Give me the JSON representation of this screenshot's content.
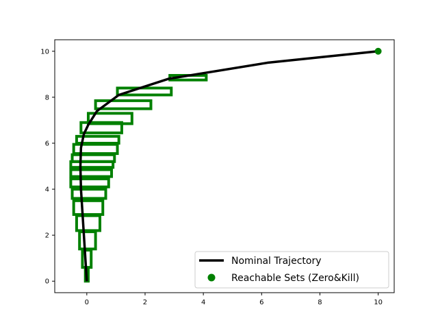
{
  "chart_data": {
    "type": "line",
    "title": "",
    "xlabel": "",
    "ylabel": "",
    "xlim": [
      -1.1,
      10.55
    ],
    "ylim": [
      -0.5,
      10.5
    ],
    "xticks": [
      0,
      2,
      4,
      6,
      8,
      10
    ],
    "yticks": [
      0,
      2,
      4,
      6,
      8,
      10
    ],
    "grid": false,
    "legend_position": "bottom-right",
    "colors": {
      "nominal": "#000000",
      "reachable": "#008000"
    },
    "series": [
      {
        "name": "Nominal Trajectory",
        "kind": "line",
        "x": [
          0.0,
          -0.05,
          -0.1,
          -0.15,
          -0.2,
          -0.22,
          -0.2,
          -0.1,
          0.05,
          0.35,
          1.1,
          2.8,
          6.2,
          10.0
        ],
        "y": [
          0.0,
          1.0,
          2.0,
          3.0,
          4.0,
          5.0,
          5.8,
          6.4,
          6.8,
          7.4,
          8.1,
          8.8,
          9.5,
          10.0
        ]
      },
      {
        "name": "Reachable Sets (Zero&Kill)",
        "kind": "boxes",
        "boxes": [
          {
            "x": [
              2.85,
              4.1
            ],
            "y": [
              8.75,
              8.95
            ]
          },
          {
            "x": [
              1.05,
              2.9
            ],
            "y": [
              8.1,
              8.4
            ]
          },
          {
            "x": [
              0.3,
              2.2
            ],
            "y": [
              7.5,
              7.85
            ]
          },
          {
            "x": [
              0.05,
              1.55
            ],
            "y": [
              6.85,
              7.3
            ]
          },
          {
            "x": [
              -0.2,
              1.2
            ],
            "y": [
              6.45,
              6.9
            ]
          },
          {
            "x": [
              -0.35,
              1.1
            ],
            "y": [
              6.0,
              6.3
            ]
          },
          {
            "x": [
              -0.45,
              1.05
            ],
            "y": [
              5.55,
              5.95
            ]
          },
          {
            "x": [
              -0.5,
              0.95
            ],
            "y": [
              5.2,
              5.5
            ]
          },
          {
            "x": [
              -0.55,
              0.9
            ],
            "y": [
              4.95,
              5.2
            ]
          },
          {
            "x": [
              -0.55,
              0.85
            ],
            "y": [
              4.55,
              4.85
            ]
          },
          {
            "x": [
              -0.55,
              0.75
            ],
            "y": [
              4.1,
              4.45
            ]
          },
          {
            "x": [
              -0.5,
              0.65
            ],
            "y": [
              3.6,
              4.0
            ]
          },
          {
            "x": [
              -0.45,
              0.55
            ],
            "y": [
              2.9,
              3.5
            ]
          },
          {
            "x": [
              -0.35,
              0.45
            ],
            "y": [
              2.2,
              2.85
            ]
          },
          {
            "x": [
              -0.25,
              0.3
            ],
            "y": [
              1.4,
              2.15
            ]
          },
          {
            "x": [
              -0.15,
              0.15
            ],
            "y": [
              0.6,
              1.35
            ]
          },
          {
            "x": [
              -0.05,
              0.05
            ],
            "y": [
              0.0,
              0.55
            ]
          }
        ],
        "endpoint": {
          "x": 10.0,
          "y": 10.0
        }
      }
    ]
  }
}
